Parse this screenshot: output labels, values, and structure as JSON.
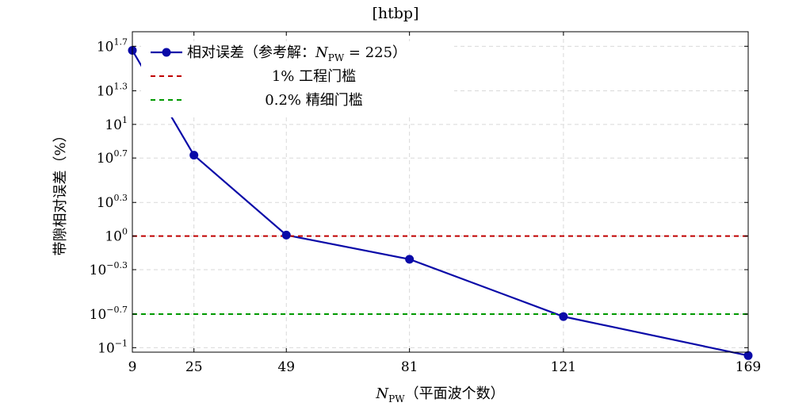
{
  "figure_caption": "[htbp]",
  "chart_data": {
    "type": "line",
    "xlabel": "N_PW（平面波个数）",
    "xlabel_parts": {
      "main": "N",
      "sub": "PW",
      "tail": "（平面波个数）"
    },
    "ylabel": "带隙相对误差（%）",
    "x_ticks": [
      9,
      25,
      49,
      81,
      121,
      169
    ],
    "x_range": [
      9,
      169
    ],
    "y_ticks": [
      {
        "value": 50.1,
        "base": "10",
        "exp": "1.7"
      },
      {
        "value": 20.0,
        "base": "10",
        "exp": "1.3"
      },
      {
        "value": 10,
        "base": "10",
        "exp": "1"
      },
      {
        "value": 5.0,
        "base": "10",
        "exp": "0.7"
      },
      {
        "value": 2.0,
        "base": "10",
        "exp": "0.3"
      },
      {
        "value": 1,
        "base": "10",
        "exp": "0"
      },
      {
        "value": 0.5,
        "base": "10",
        "exp": "−0.3"
      },
      {
        "value": 0.2,
        "base": "10",
        "exp": "−0.7"
      },
      {
        "value": 0.1,
        "base": "10",
        "exp": "−1"
      }
    ],
    "y_range_log10": [
      -1.04,
      1.83
    ],
    "y_scale": "log",
    "grid": true,
    "legend_placement": "top-left",
    "series": [
      {
        "name": "相对误差（参考解：N_PW = 225）",
        "legend_parts": {
          "pre": "相对误差（参考解：",
          "n": "N",
          "sub": "PW",
          "post": " = 225）"
        },
        "color": "#0a0aa8",
        "x": [
          9,
          25,
          49,
          81,
          121,
          169
        ],
        "y": [
          46.0,
          5.3,
          1.02,
          0.62,
          0.19,
          0.085
        ]
      },
      {
        "name": "1% 工程门槛",
        "color": "#c00000",
        "dashed": true,
        "y_const": 1.0
      },
      {
        "name": "0.2% 精细门槛",
        "color": "#009900",
        "dashed": true,
        "y_const": 0.2
      }
    ]
  }
}
